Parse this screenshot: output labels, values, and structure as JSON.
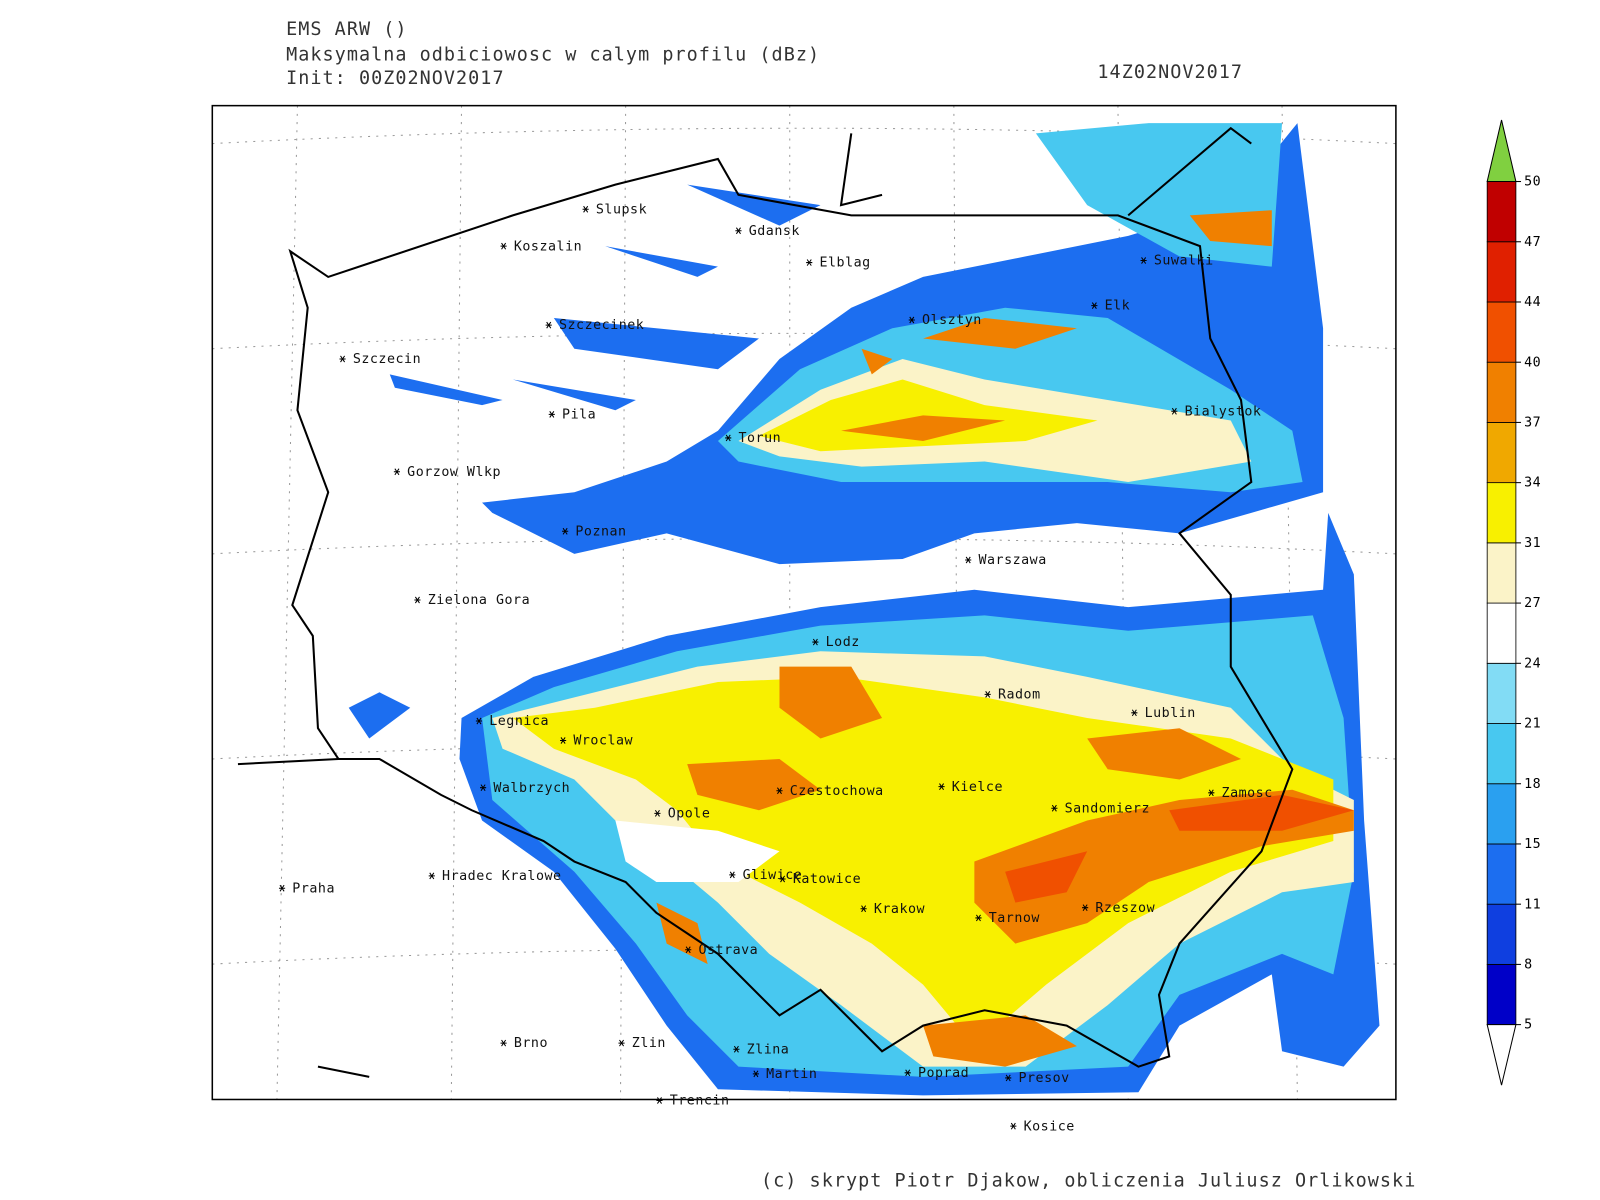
{
  "header": {
    "model": "EMS ARW ()",
    "field": "Maksymalna odbiciowosc w calym profilu (dBz)",
    "init": "Init: 00Z02NOV2017",
    "valid": "14Z02NOV2017"
  },
  "cities": [
    "Slupsk",
    "Koszalin",
    "Gdansk",
    "Elblag",
    "Suwalki",
    "Elk",
    "Olsztyn",
    "Szczecinek",
    "Szczecin",
    "Bialystok",
    "Pila",
    "Torun",
    "Gorzow Wlkp",
    "Poznan",
    "Warszawa",
    "Zielona Gora",
    "Lodz",
    "Radom",
    "Lublin",
    "Legnica",
    "Wroclaw",
    "Walbrzych",
    "Czestochowa",
    "Kielce",
    "Zamosc",
    "Opole",
    "Sandomierz",
    "Praha",
    "Hradec Kralowe",
    "Gliwice",
    "Katowice",
    "Krakow",
    "Tarnow",
    "Rzeszow",
    "Ostrava",
    "Brno",
    "Zlin",
    "Zlina",
    "Martin",
    "Poprad",
    "Presov",
    "Trencin",
    "Kosice"
  ],
  "colorbar": {
    "levels": [
      5,
      8,
      11,
      15,
      18,
      21,
      24,
      27,
      31,
      34,
      37,
      40,
      44,
      47,
      50
    ],
    "colors": [
      "#0000c8",
      "#0f3fe0",
      "#1c6ef0",
      "#2aa0f0",
      "#48c8f0",
      "#82dcf5",
      "#ffffff",
      "#fbf3c8",
      "#f8f000",
      "#f0a800",
      "#f08000",
      "#f05000",
      "#e02000",
      "#c00000"
    ],
    "under_color": "#ffffff",
    "over_color": "#80d040"
  },
  "footer": "(c) skrypt Piotr Djakow, obliczenia Juliusz Orlikowski"
}
